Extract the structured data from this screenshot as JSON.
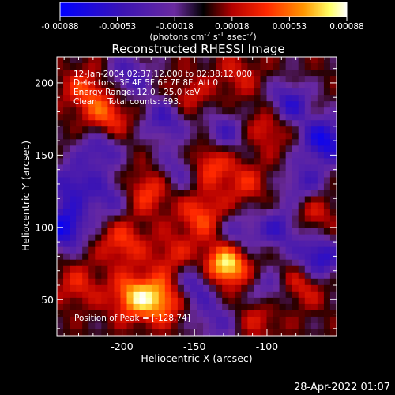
{
  "colorbar": {
    "ticks": [
      "-0.00088",
      "-0.00053",
      "-0.00018",
      "0.00018",
      "0.00053",
      "0.00088"
    ],
    "units_main": "(photons cm",
    "units_exp1": "-2",
    "units_mid1": " s",
    "units_exp2": "-1",
    "units_mid2": " asec",
    "units_exp3": "-2",
    "units_end": ")"
  },
  "annotations": {
    "time": "12-Jan-2004 02:37:12.000 to 02:38:12.000",
    "detectors": "Detectors: 3F 4F 5F 6F 7F 8F, Att 0",
    "energy": "Energy Range: 12.0 - 25.0 keV",
    "clean": "Clean    Total counts: 693.",
    "peak": "Position of Peak = [-128,74]"
  },
  "footer": {
    "timestamp": "28-Apr-2022 01:07"
  },
  "chart_data": {
    "type": "heatmap",
    "title": "Reconstructed RHESSI Image",
    "xlabel": "Heliocentric X (arcsec)",
    "ylabel": "Heliocentric Y (arcsec)",
    "xlim": [
      -245,
      -52
    ],
    "ylim": [
      25,
      218
    ],
    "xticks": [
      -200,
      -150,
      -100
    ],
    "yticks": [
      50,
      100,
      150,
      200
    ],
    "color_range": [
      -0.00088,
      0.00088
    ],
    "colormap": [
      "#0000ff",
      "#3c14b4",
      "#6a2aa0",
      "#3a0000",
      "#b40000",
      "#ff2800",
      "#ff9600",
      "#ffff64",
      "#ffffff"
    ],
    "peak": [
      -128,
      74
    ],
    "hotspots": [
      {
        "x": -128,
        "y": 74,
        "v": 0.00088
      },
      {
        "x": -192,
        "y": 52,
        "v": 0.00062
      },
      {
        "x": -172,
        "y": 50,
        "v": 0.0006
      },
      {
        "x": -140,
        "y": 145,
        "v": 0.0005
      },
      {
        "x": -210,
        "y": 175,
        "v": 0.00048
      },
      {
        "x": -145,
        "y": 108,
        "v": 0.00045
      },
      {
        "x": -225,
        "y": 195,
        "v": 0.0004
      },
      {
        "x": -182,
        "y": 125,
        "v": 0.00042
      },
      {
        "x": -98,
        "y": 170,
        "v": 0.00038
      },
      {
        "x": -75,
        "y": 62,
        "v": 0.0004
      },
      {
        "x": -70,
        "y": 110,
        "v": 0.00035
      },
      {
        "x": -200,
        "y": 90,
        "v": 0.0004
      },
      {
        "x": -155,
        "y": 190,
        "v": 0.0003
      },
      {
        "x": -115,
        "y": 130,
        "v": 0.0003
      },
      {
        "x": -230,
        "y": 60,
        "v": 0.0003
      },
      {
        "x": -105,
        "y": 40,
        "v": 0.00035
      },
      {
        "x": -165,
        "y": 80,
        "v": 0.0003
      },
      {
        "x": -120,
        "y": 205,
        "v": 0.00025
      }
    ],
    "coldspots": [
      {
        "x": -240,
        "y": 100,
        "v": -0.00075
      },
      {
        "x": -60,
        "y": 160,
        "v": -0.00075
      },
      {
        "x": -85,
        "y": 185,
        "v": -0.0006
      },
      {
        "x": -65,
        "y": 78,
        "v": -0.0007
      },
      {
        "x": -150,
        "y": 60,
        "v": -0.0005
      },
      {
        "x": -170,
        "y": 175,
        "v": -0.0005
      },
      {
        "x": -215,
        "y": 155,
        "v": -0.0005
      },
      {
        "x": -90,
        "y": 100,
        "v": -0.0005
      },
      {
        "x": -195,
        "y": 205,
        "v": -0.00045
      },
      {
        "x": -130,
        "y": 165,
        "v": -0.00045
      },
      {
        "x": -100,
        "y": 55,
        "v": -0.0004
      },
      {
        "x": -235,
        "y": 130,
        "v": -0.0005
      },
      {
        "x": -120,
        "y": 95,
        "v": -0.0004
      },
      {
        "x": -160,
        "y": 140,
        "v": -0.0004
      },
      {
        "x": -75,
        "y": 130,
        "v": -0.00045
      },
      {
        "x": -210,
        "y": 120,
        "v": -0.0004
      },
      {
        "x": -135,
        "y": 35,
        "v": -0.00035
      }
    ]
  }
}
